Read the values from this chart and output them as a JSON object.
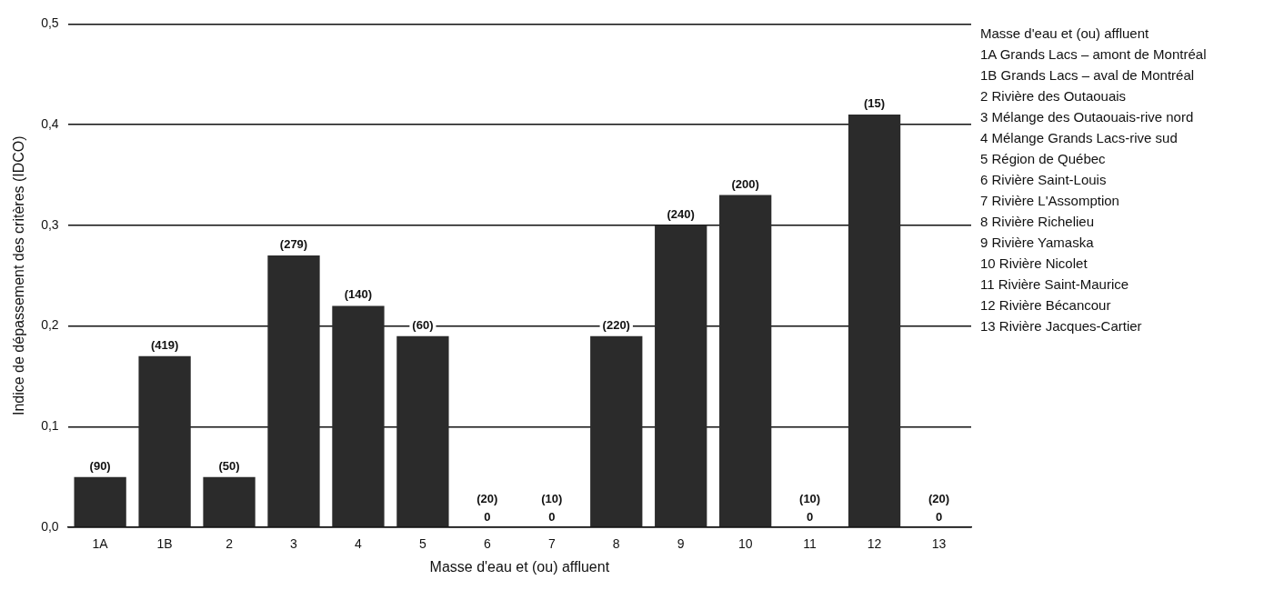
{
  "chart_data": [
    {
      "type": "bar",
      "xlabel": "Masse d'eau et (ou) affluent",
      "ylabel": "Indice de dépassement des critères (IDCO)",
      "categories": [
        "1A",
        "1B",
        "2",
        "3",
        "4",
        "5",
        "6",
        "7",
        "8",
        "9",
        "10",
        "11",
        "12",
        "13"
      ],
      "values": [
        0.05,
        0.17,
        0.05,
        0.27,
        0.22,
        0.19,
        0,
        0,
        0.19,
        0.3,
        0.33,
        0,
        0.41,
        0
      ],
      "value_labels": [
        null,
        null,
        null,
        null,
        null,
        null,
        "0",
        "0",
        null,
        null,
        null,
        "0",
        null,
        "0"
      ],
      "color": "#2b2b2b",
      "ylim": [
        0,
        0.5
      ],
      "yticks": [
        {
          "value": 0,
          "label": "0,0"
        },
        {
          "value": 0.1,
          "label": "0,1"
        },
        {
          "value": 0.2,
          "label": "0,2"
        },
        {
          "value": 0.3,
          "label": "0,3"
        },
        {
          "value": 0.4,
          "label": "0,4"
        },
        {
          "value": 0.5,
          "label": "0,5"
        }
      ],
      "grid": "y",
      "legend": false,
      "annotations": [
        {
          "text": "(90)",
          "x": "1A",
          "y": 0.05
        },
        {
          "text": "(419)",
          "x": "1B",
          "y": 0.17
        },
        {
          "text": "(50)",
          "x": "2",
          "y": 0.05
        },
        {
          "text": "(279)",
          "x": "3",
          "y": 0.27
        },
        {
          "text": "(140)",
          "x": "4",
          "y": 0.22
        },
        {
          "text": "(60)",
          "x": "5",
          "y": 0.19
        },
        {
          "text": "(20)",
          "x": "6",
          "y": 0
        },
        {
          "text": "(10)",
          "x": "7",
          "y": 0
        },
        {
          "text": "(220)",
          "x": "8",
          "y": 0.19
        },
        {
          "text": "(240)",
          "x": "9",
          "y": 0.3
        },
        {
          "text": "(200)",
          "x": "10",
          "y": 0.33
        },
        {
          "text": "(10)",
          "x": "11",
          "y": 0
        },
        {
          "text": "(15)",
          "x": "12",
          "y": 0.41
        },
        {
          "text": "(20)",
          "x": "13",
          "y": 0
        }
      ]
    },
    {
      "type": "other",
      "title": "Masse d'eau et (ou) affluent",
      "annotations": [
        "1A Grands Lacs – amont de Montréal",
        "1B Grands Lacs – aval de Montréal",
        "2 Rivière des Outaouais",
        "3 Mélange des Outaouais-rive nord",
        "4 Mélange Grands Lacs-rive sud",
        "5 Région de Québec",
        "6 Rivière Saint-Louis",
        "7 Rivière L'Assomption",
        "8 Rivière Richelieu",
        "9 Rivière Yamaska",
        "10 Rivière Nicolet",
        "11 Rivière Saint-Maurice",
        "12 Rivière Bécancour",
        "13 Rivière Jacques-Cartier"
      ]
    }
  ]
}
